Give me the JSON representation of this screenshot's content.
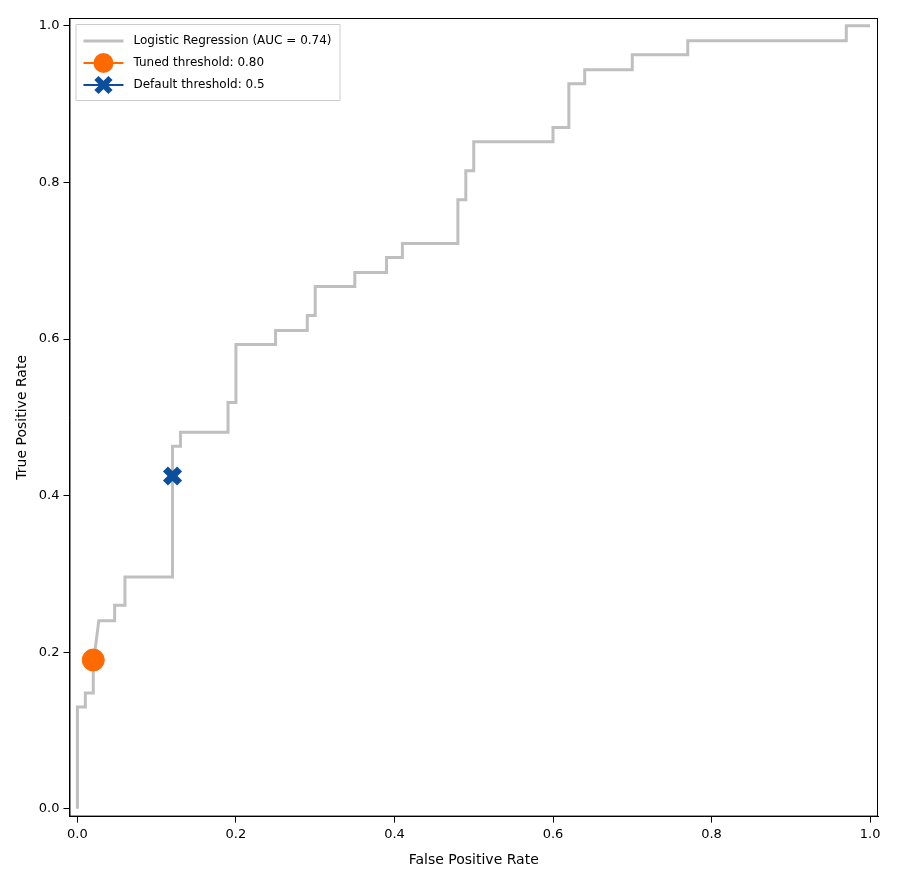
{
  "chart_data": {
    "type": "line",
    "xlabel": "False Positive Rate",
    "ylabel": "True Positive Rate",
    "xlim": [
      -0.01,
      1.01
    ],
    "ylim": [
      -0.01,
      1.01
    ],
    "xticks": [
      {
        "value": 0,
        "label": "0.0"
      },
      0.2,
      0.4,
      0.6,
      0.8,
      {
        "value": 1,
        "label": "1.0"
      }
    ],
    "yticks": [
      {
        "value": 0,
        "label": "0.0"
      },
      0.2,
      0.4,
      0.6,
      0.8,
      {
        "value": 1,
        "label": "1.0"
      }
    ],
    "grid": false,
    "legend": "upper left",
    "series": [
      {
        "name": "Logistic Regression (AUC = 0.74)",
        "type": "line",
        "color": "#bfbfbf",
        "x": [
          0,
          0,
          0.01,
          0.01,
          0.02,
          0.02,
          0.027,
          0.047,
          0.047,
          0.06,
          0.06,
          0.12,
          0.12,
          0.13,
          0.13,
          0.19,
          0.19,
          0.2,
          0.2,
          0.25,
          0.25,
          0.29,
          0.29,
          0.3,
          0.3,
          0.35,
          0.35,
          0.39,
          0.39,
          0.41,
          0.41,
          0.48,
          0.48,
          0.49,
          0.49,
          0.5,
          0.5,
          0.6,
          0.6,
          0.62,
          0.62,
          0.64,
          0.64,
          0.7,
          0.7,
          0.77,
          0.77,
          0.97,
          0.97,
          1.0
        ],
        "values": [
          0,
          0.13,
          0.13,
          0.148,
          0.148,
          0.185,
          0.24,
          0.24,
          0.26,
          0.26,
          0.296,
          0.296,
          0.463,
          0.463,
          0.481,
          0.481,
          0.519,
          0.519,
          0.593,
          0.593,
          0.611,
          0.611,
          0.63,
          0.63,
          0.667,
          0.667,
          0.685,
          0.685,
          0.704,
          0.704,
          0.722,
          0.722,
          0.778,
          0.778,
          0.815,
          0.815,
          0.852,
          0.852,
          0.87,
          0.87,
          0.926,
          0.926,
          0.944,
          0.944,
          0.963,
          0.963,
          0.981,
          0.981,
          1.0,
          1.0
        ]
      },
      {
        "name": "Tuned threshold: 0.80",
        "type": "scatter",
        "marker": "circle",
        "color": "#ff6a00",
        "x": [
          0.02
        ],
        "values": [
          0.19
        ]
      },
      {
        "name": "Default threshold: 0.5",
        "type": "scatter",
        "marker": "x",
        "color": "#0b4f9c",
        "x": [
          0.12
        ],
        "values": [
          0.425
        ]
      }
    ]
  }
}
